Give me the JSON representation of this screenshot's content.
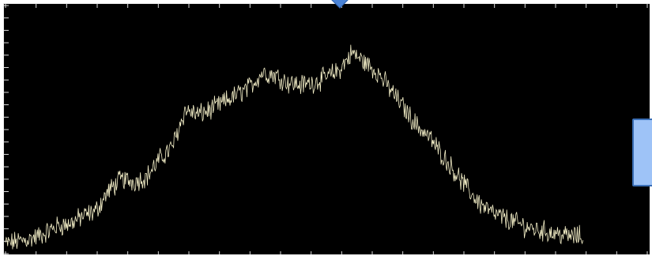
{
  "chart_data": {
    "type": "line",
    "title": "",
    "xlabel": "",
    "ylabel": "",
    "grid": false,
    "xlim": [
      0,
      1000
    ],
    "ylim": [
      0,
      100
    ],
    "x_tick_count": 21,
    "y_tick_count": 20,
    "series": [
      {
        "color": "#f2edc6",
        "points": [
          [
            0,
            4
          ],
          [
            20,
            5
          ],
          [
            40,
            6
          ],
          [
            60,
            8
          ],
          [
            80,
            11
          ],
          [
            100,
            12
          ],
          [
            120,
            15
          ],
          [
            140,
            17
          ],
          [
            160,
            25
          ],
          [
            180,
            30
          ],
          [
            200,
            29
          ],
          [
            220,
            31
          ],
          [
            240,
            38
          ],
          [
            260,
            43
          ],
          [
            280,
            58
          ],
          [
            300,
            56
          ],
          [
            320,
            58
          ],
          [
            340,
            61
          ],
          [
            360,
            64
          ],
          [
            380,
            67
          ],
          [
            400,
            73
          ],
          [
            420,
            72
          ],
          [
            440,
            69
          ],
          [
            460,
            68
          ],
          [
            480,
            69
          ],
          [
            500,
            71
          ],
          [
            520,
            74
          ],
          [
            540,
            81
          ],
          [
            560,
            77
          ],
          [
            580,
            73
          ],
          [
            600,
            66
          ],
          [
            620,
            59
          ],
          [
            640,
            52
          ],
          [
            660,
            47
          ],
          [
            680,
            40
          ],
          [
            700,
            33
          ],
          [
            720,
            26
          ],
          [
            740,
            20
          ],
          [
            760,
            16
          ],
          [
            780,
            14
          ],
          [
            800,
            12
          ],
          [
            820,
            10
          ],
          [
            840,
            9
          ],
          [
            860,
            8
          ],
          [
            880,
            7
          ],
          [
            900,
            7
          ]
        ]
      }
    ]
  },
  "colors": {
    "plot_background": "#000000",
    "trace": "#f2edc6",
    "panel_fill": "#9ec3f7",
    "panel_border": "#3b6fb6",
    "marker": "#4a83d6"
  }
}
